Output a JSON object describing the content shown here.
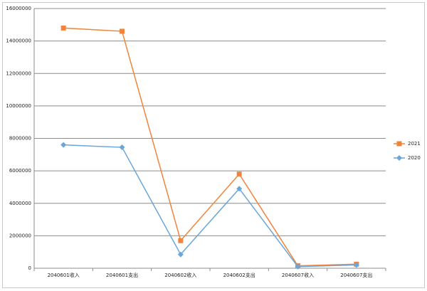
{
  "chart_data": {
    "type": "line",
    "categories": [
      "2040601收入",
      "2040601支出",
      "2040602收入",
      "2040602支出",
      "2040607收入",
      "2040607支出"
    ],
    "series": [
      {
        "name": "2021",
        "color": "#f0843c",
        "marker": "square",
        "values": [
          14800000,
          14600000,
          1700000,
          5800000,
          150000,
          250000
        ]
      },
      {
        "name": "2020",
        "color": "#6aa6d8",
        "marker": "diamond",
        "values": [
          7600000,
          7450000,
          850000,
          4900000,
          100000,
          200000
        ]
      }
    ],
    "ylim": [
      0,
      16000000
    ],
    "yticks": [
      0,
      2000000,
      4000000,
      6000000,
      8000000,
      10000000,
      12000000,
      14000000,
      16000000
    ],
    "grid": true,
    "legend": "right"
  }
}
